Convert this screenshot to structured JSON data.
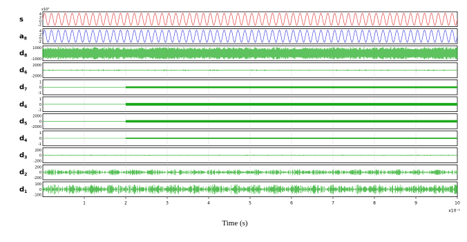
{
  "chart_data": {
    "type": "line",
    "title": "",
    "xlabel": "Time (s)",
    "x_ticks": [
      "1",
      "2",
      "3",
      "4",
      "5",
      "6",
      "7",
      "8",
      "9",
      "10"
    ],
    "x_exponent": "x10⁻¹",
    "xlim": [
      0,
      10
    ],
    "grid": true,
    "colors": {
      "s": "#e02424",
      "a": "#2a2ae0",
      "d": "#1aa81a"
    },
    "series": [
      {
        "name": "s",
        "sub": "",
        "color_key": "s",
        "kind": "sine",
        "ticks": [
          "4",
          "2",
          "0",
          "-2"
        ],
        "exponent": "x10³",
        "cycles": 60,
        "amplitude": 1.0
      },
      {
        "name": "a",
        "sub": "8",
        "color_key": "a",
        "kind": "sine",
        "ticks": [
          "4",
          "2",
          "0",
          "-2"
        ],
        "exponent": "",
        "cycles": 60,
        "amplitude": 1.0
      },
      {
        "name": "d",
        "sub": "8",
        "color_key": "d",
        "kind": "dense",
        "ticks": [
          "1000",
          "-1000"
        ],
        "exponent": "",
        "level": 0.9
      },
      {
        "name": "d",
        "sub": "6",
        "color_key": "d",
        "kind": "sparse",
        "ticks": [
          "2000",
          "-2000"
        ],
        "exponent": "",
        "level": 0.1
      },
      {
        "name": "d",
        "sub": "7",
        "color_key": "d",
        "kind": "step",
        "ticks": [
          "1",
          "0",
          "-1"
        ],
        "exponent": "",
        "step_at": 2,
        "level": 0.12
      },
      {
        "name": "d",
        "sub": "6",
        "color_key": "d",
        "kind": "step",
        "ticks": [
          "1",
          "0",
          "-1"
        ],
        "exponent": "",
        "step_at": 2,
        "level": 0.18
      },
      {
        "name": "d",
        "sub": "5",
        "color_key": "d",
        "kind": "step",
        "ticks": [
          "2000",
          "0",
          "-2000"
        ],
        "exponent": "",
        "step_at": 2,
        "level": 0.16
      },
      {
        "name": "d",
        "sub": "4",
        "color_key": "d",
        "kind": "step",
        "ticks": [
          "1",
          "0",
          "-1"
        ],
        "exponent": "",
        "step_at": 2,
        "level": 0.08
      },
      {
        "name": "d",
        "sub": "3",
        "color_key": "d",
        "kind": "sparse",
        "ticks": [
          "200",
          "0",
          "-200"
        ],
        "exponent": "",
        "level": 0.06
      },
      {
        "name": "d",
        "sub": "2",
        "color_key": "d",
        "kind": "noise",
        "ticks": [
          "200",
          "0",
          "-200"
        ],
        "exponent": "",
        "level": 0.45
      },
      {
        "name": "d",
        "sub": "1",
        "color_key": "d",
        "kind": "noise",
        "ticks": [
          "100",
          "0",
          "-100"
        ],
        "exponent": "",
        "level": 0.75
      }
    ]
  }
}
